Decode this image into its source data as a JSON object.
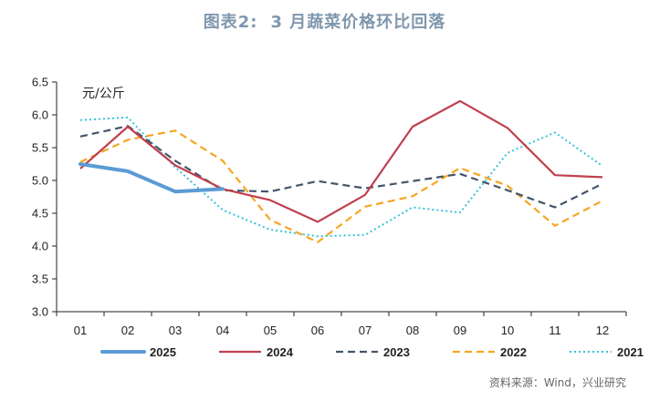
{
  "header": {
    "label": "图表2:",
    "title": "3 月蔬菜价格环比回落"
  },
  "chart_data": {
    "type": "line",
    "unit": "元/公斤",
    "categories": [
      "01",
      "02",
      "03",
      "04",
      "05",
      "06",
      "07",
      "08",
      "09",
      "10",
      "11",
      "12"
    ],
    "ylim": [
      3.0,
      6.5
    ],
    "yticks": [
      "3.0",
      "3.5",
      "4.0",
      "4.5",
      "5.0",
      "5.5",
      "6.0",
      "6.5"
    ],
    "grid": false,
    "legend_position": "bottom",
    "series": [
      {
        "name": "2025",
        "color": "#5b9bd5",
        "style": "solid-thick",
        "values": [
          5.25,
          5.14,
          4.83,
          4.87,
          null,
          null,
          null,
          null,
          null,
          null,
          null,
          null
        ]
      },
      {
        "name": "2024",
        "color": "#c0404e",
        "style": "solid",
        "values": [
          5.18,
          5.82,
          5.23,
          4.87,
          4.7,
          4.37,
          4.78,
          5.82,
          6.21,
          5.8,
          5.08,
          5.05
        ]
      },
      {
        "name": "2023",
        "color": "#44546a",
        "style": "dashed",
        "values": [
          5.67,
          5.83,
          5.3,
          4.85,
          4.83,
          4.99,
          4.88,
          4.99,
          5.1,
          4.85,
          4.59,
          4.95
        ]
      },
      {
        "name": "2022",
        "color": "#f5a623",
        "style": "dashed",
        "values": [
          5.28,
          5.62,
          5.76,
          5.3,
          4.4,
          4.06,
          4.6,
          4.76,
          5.19,
          4.92,
          4.31,
          4.69
        ]
      },
      {
        "name": "2021",
        "color": "#35c4d8",
        "style": "dotted",
        "values": [
          5.92,
          5.96,
          5.2,
          4.55,
          4.25,
          4.15,
          4.17,
          4.59,
          4.51,
          5.42,
          5.73,
          5.22
        ]
      }
    ]
  },
  "source": "资料来源：Wind，兴业研究"
}
